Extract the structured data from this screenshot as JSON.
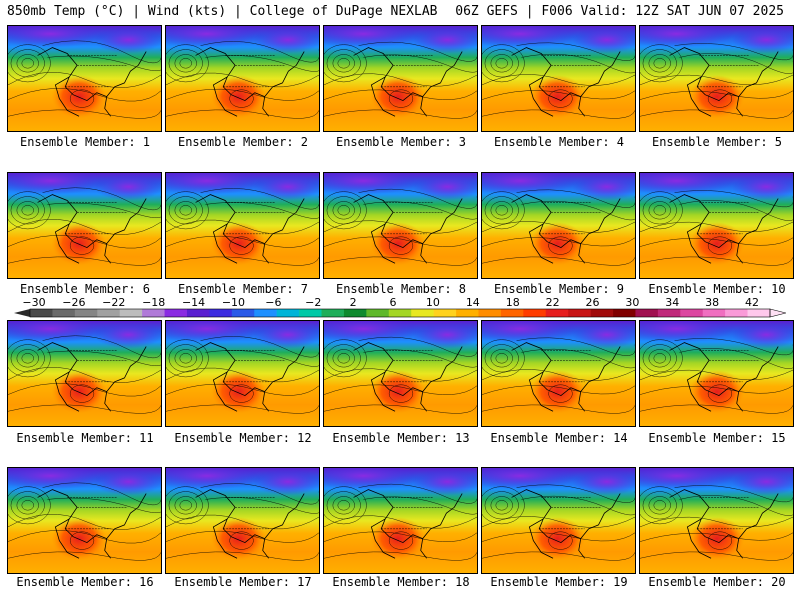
{
  "header": {
    "left": "850mb Temp (°C) | Wind (kts) | College of DuPage NEXLAB",
    "right": "06Z GEFS | F006 Valid: 12Z SAT JUN 07 2025"
  },
  "members": [
    {
      "label": "Ensemble Member: 1"
    },
    {
      "label": "Ensemble Member: 2"
    },
    {
      "label": "Ensemble Member: 3"
    },
    {
      "label": "Ensemble Member: 4"
    },
    {
      "label": "Ensemble Member: 5"
    },
    {
      "label": "Ensemble Member: 6"
    },
    {
      "label": "Ensemble Member: 7"
    },
    {
      "label": "Ensemble Member: 8"
    },
    {
      "label": "Ensemble Member: 9"
    },
    {
      "label": "Ensemble Member: 10"
    },
    {
      "label": "Ensemble Member: 11"
    },
    {
      "label": "Ensemble Member: 12"
    },
    {
      "label": "Ensemble Member: 13"
    },
    {
      "label": "Ensemble Member: 14"
    },
    {
      "label": "Ensemble Member: 15"
    },
    {
      "label": "Ensemble Member: 16"
    },
    {
      "label": "Ensemble Member: 17"
    },
    {
      "label": "Ensemble Member: 18"
    },
    {
      "label": "Ensemble Member: 19"
    },
    {
      "label": "Ensemble Member: 20"
    }
  ],
  "colorbar": {
    "ticks": [
      "−30",
      "−26",
      "−22",
      "−18",
      "−14",
      "−10",
      "−6",
      "−2",
      "2",
      "6",
      "10",
      "14",
      "18",
      "22",
      "26",
      "30",
      "34",
      "38",
      "42"
    ],
    "colors": [
      "#4a4a4a",
      "#6a6a6a",
      "#858585",
      "#a0a0a0",
      "#bcbcbc",
      "#b07ad8",
      "#8a2be2",
      "#5a1fd0",
      "#3c2ce0",
      "#2a5ae8",
      "#1e90ff",
      "#00b4d8",
      "#00c9a7",
      "#1fae5a",
      "#0f8a2e",
      "#5fb82a",
      "#a4d624",
      "#e8e820",
      "#ffd21e",
      "#ffb000",
      "#ff8c00",
      "#ff6400",
      "#ff3c00",
      "#e61e1e",
      "#c81414",
      "#a00a0a",
      "#800000",
      "#a01050",
      "#c0287a",
      "#dc46a0",
      "#f06ec0",
      "#fa9ad8",
      "#ffc8ec"
    ]
  }
}
